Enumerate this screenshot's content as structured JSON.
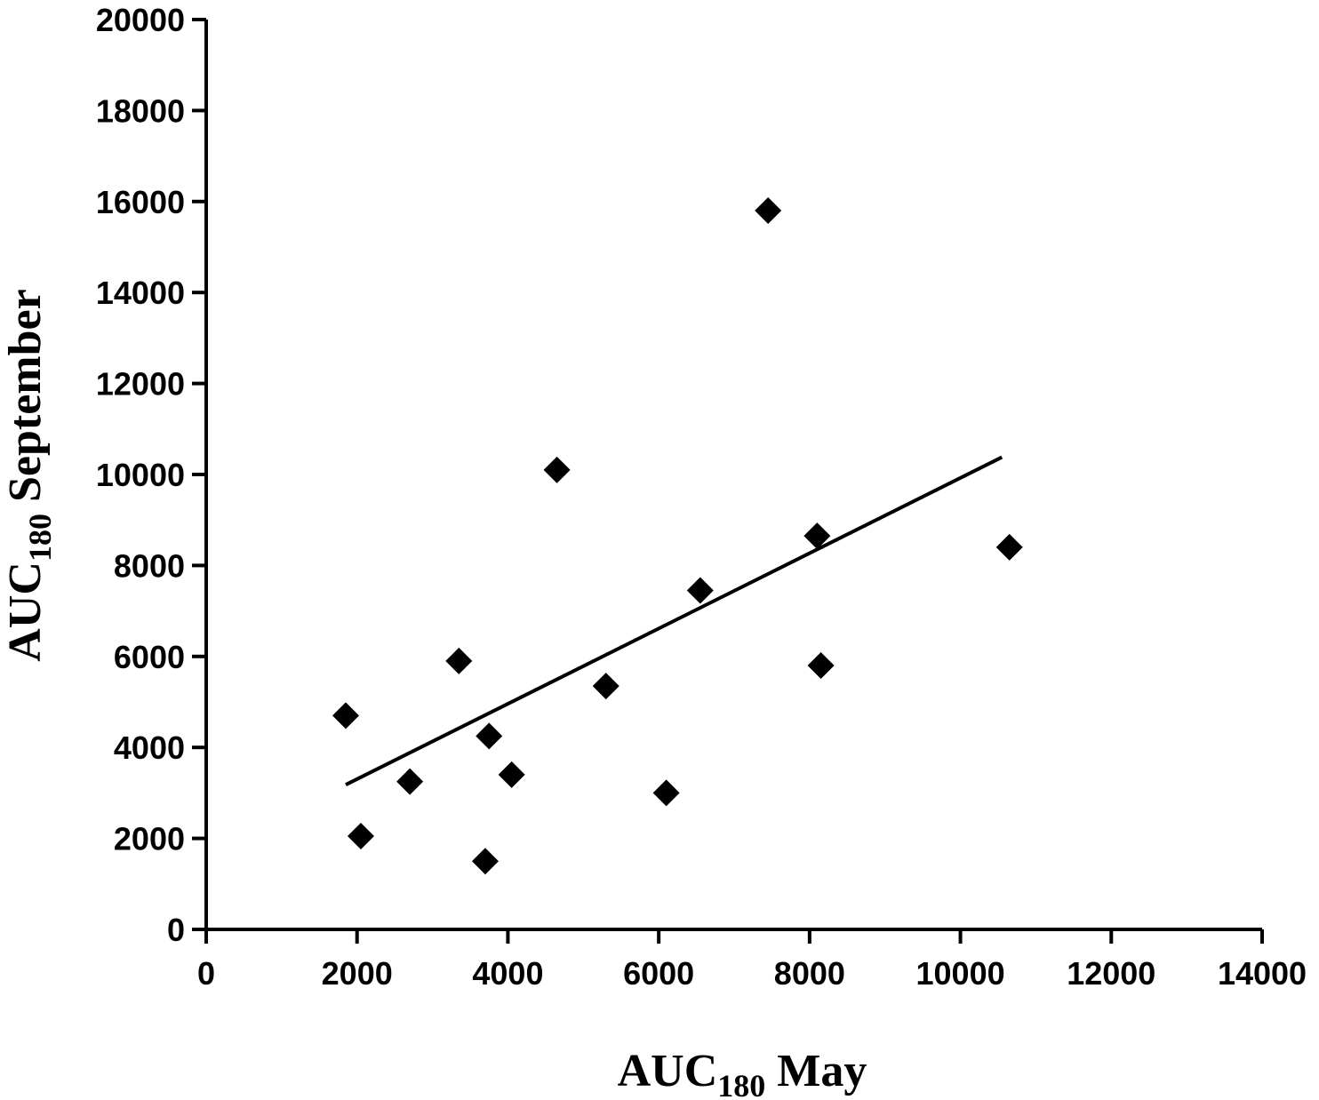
{
  "chart_data": {
    "type": "scatter",
    "title": "",
    "xlabel": {
      "main": "AUC",
      "sub": "180",
      "rest": " May"
    },
    "ylabel": {
      "main": "AUC",
      "sub": "180",
      "rest": " September"
    },
    "xlim": [
      0,
      14000
    ],
    "ylim": [
      0,
      20000
    ],
    "x_ticks": [
      0,
      2000,
      4000,
      6000,
      8000,
      10000,
      12000,
      14000
    ],
    "y_ticks": [
      0,
      2000,
      4000,
      6000,
      8000,
      10000,
      12000,
      14000,
      16000,
      18000,
      20000
    ],
    "x_tick_labels": [
      "0",
      "2000",
      "4000",
      "6000",
      "8000",
      "10000",
      "12000",
      "14000"
    ],
    "y_tick_labels": [
      "0",
      "2000",
      "4000",
      "6000",
      "8000",
      "10000",
      "12000",
      "14000",
      "16000",
      "18000",
      "20000"
    ],
    "grid": false,
    "series": [
      {
        "marker": "diamond",
        "color": "#000000",
        "points": [
          {
            "x": 1850,
            "y": 4700
          },
          {
            "x": 2050,
            "y": 2050
          },
          {
            "x": 2700,
            "y": 3250
          },
          {
            "x": 3350,
            "y": 5900
          },
          {
            "x": 3700,
            "y": 1500
          },
          {
            "x": 3750,
            "y": 4250
          },
          {
            "x": 4050,
            "y": 3400
          },
          {
            "x": 4650,
            "y": 10100
          },
          {
            "x": 5300,
            "y": 5350
          },
          {
            "x": 6100,
            "y": 3000
          },
          {
            "x": 6550,
            "y": 7450
          },
          {
            "x": 7450,
            "y": 15800
          },
          {
            "x": 8100,
            "y": 8650
          },
          {
            "x": 8150,
            "y": 5800
          },
          {
            "x": 10650,
            "y": 8400
          }
        ]
      }
    ],
    "trendline": {
      "x": [
        1850,
        10550
      ],
      "y": [
        3180,
        10380
      ],
      "color": "#000000"
    }
  }
}
